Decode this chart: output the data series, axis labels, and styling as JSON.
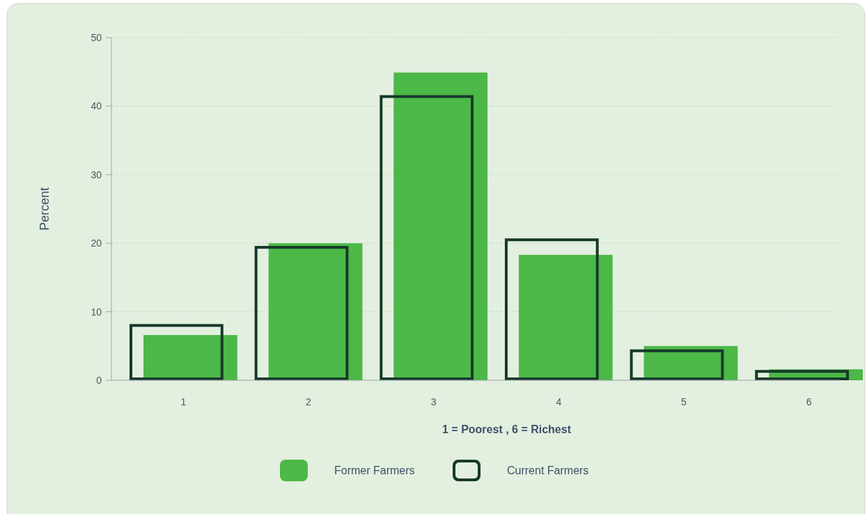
{
  "chart_data": {
    "type": "bar",
    "xlabel": "1 = Poorest , 6 = Richest",
    "ylabel": "Percent",
    "categories": [
      "1",
      "2",
      "3",
      "4",
      "5",
      "6"
    ],
    "series": [
      {
        "name": "Former Farmers",
        "color": "#4cb847",
        "values": [
          6.6,
          20.0,
          44.9,
          18.3,
          5.0,
          1.6
        ]
      },
      {
        "name": "Current Farmers",
        "color": "#17392b",
        "values": [
          8.0,
          19.4,
          41.4,
          20.5,
          4.3,
          1.3
        ]
      }
    ],
    "ylim": [
      0,
      50
    ],
    "yticks": [
      0,
      10,
      20,
      30,
      40,
      50
    ],
    "grid": "y",
    "legend": "bottom"
  }
}
